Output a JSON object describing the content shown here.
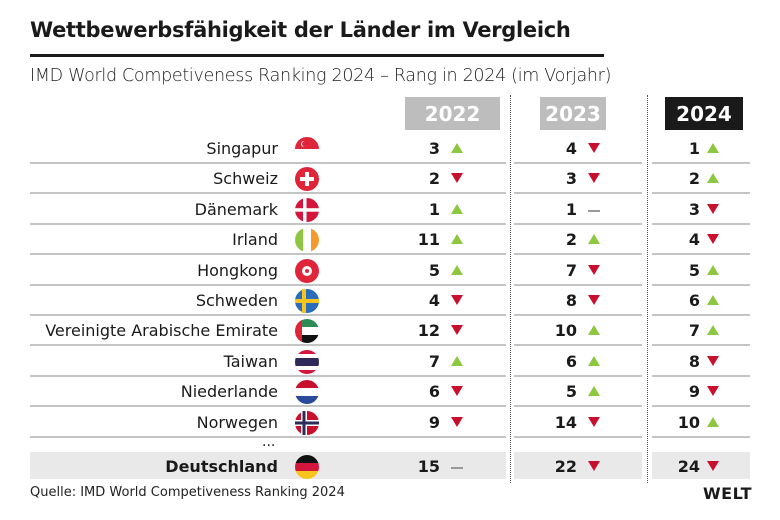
{
  "title": "Wettbewerbsfähigkeit der Länder im Vergleich",
  "subtitle": "IMD World Competiveness Ranking 2024 – Rang in 2024 (im Vorjahr)",
  "years": [
    "2022",
    "2023",
    "2024"
  ],
  "colors": {
    "up": "#8dc63f",
    "down": "#c8102e",
    "same": "#999999",
    "header_past": "#bdbdbd",
    "header_current": "#1a1a1a"
  },
  "rows": [
    {
      "country": "Singapur",
      "flag": "sg",
      "ranks": [
        {
          "v": "3",
          "t": "up"
        },
        {
          "v": "4",
          "t": "down"
        },
        {
          "v": "1",
          "t": "up"
        }
      ]
    },
    {
      "country": "Schweiz",
      "flag": "ch",
      "ranks": [
        {
          "v": "2",
          "t": "down"
        },
        {
          "v": "3",
          "t": "down"
        },
        {
          "v": "2",
          "t": "up"
        }
      ]
    },
    {
      "country": "Dänemark",
      "flag": "dk",
      "ranks": [
        {
          "v": "1",
          "t": "up"
        },
        {
          "v": "1",
          "t": "same"
        },
        {
          "v": "3",
          "t": "down"
        }
      ]
    },
    {
      "country": "Irland",
      "flag": "ie",
      "ranks": [
        {
          "v": "11",
          "t": "up"
        },
        {
          "v": "2",
          "t": "up"
        },
        {
          "v": "4",
          "t": "down"
        }
      ]
    },
    {
      "country": "Hongkong",
      "flag": "hk",
      "ranks": [
        {
          "v": "5",
          "t": "up"
        },
        {
          "v": "7",
          "t": "down"
        },
        {
          "v": "5",
          "t": "up"
        }
      ]
    },
    {
      "country": "Schweden",
      "flag": "se",
      "ranks": [
        {
          "v": "4",
          "t": "down"
        },
        {
          "v": "8",
          "t": "down"
        },
        {
          "v": "6",
          "t": "up"
        }
      ]
    },
    {
      "country": "Vereinigte Arabische Emirate",
      "flag": "ae",
      "ranks": [
        {
          "v": "12",
          "t": "down"
        },
        {
          "v": "10",
          "t": "up"
        },
        {
          "v": "7",
          "t": "up"
        }
      ]
    },
    {
      "country": "Taiwan",
      "flag": "th",
      "ranks": [
        {
          "v": "7",
          "t": "up"
        },
        {
          "v": "6",
          "t": "up"
        },
        {
          "v": "8",
          "t": "down"
        }
      ]
    },
    {
      "country": "Niederlande",
      "flag": "nl",
      "ranks": [
        {
          "v": "6",
          "t": "down"
        },
        {
          "v": "5",
          "t": "up"
        },
        {
          "v": "9",
          "t": "down"
        }
      ]
    },
    {
      "country": "Norwegen",
      "flag": "no",
      "ranks": [
        {
          "v": "9",
          "t": "down"
        },
        {
          "v": "14",
          "t": "down"
        },
        {
          "v": "10",
          "t": "up"
        }
      ]
    }
  ],
  "ellipsis": "...",
  "highlight": {
    "country": "Deutschland",
    "flag": "de",
    "ranks": [
      {
        "v": "15",
        "t": "same"
      },
      {
        "v": "22",
        "t": "down"
      },
      {
        "v": "24",
        "t": "down"
      }
    ]
  },
  "source": "Quelle: IMD World Competiveness Ranking 2024",
  "logo": "WELT"
}
